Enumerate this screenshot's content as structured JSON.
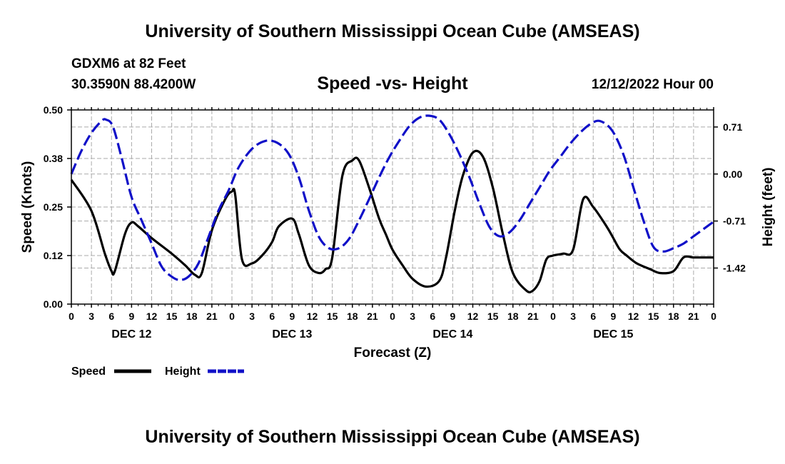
{
  "title": "University of Southern Mississippi Ocean Cube (AMSEAS)",
  "footer_title": "University of Southern Mississippi Ocean Cube (AMSEAS)",
  "station": "GDXM6 at 82 Feet",
  "location": "30.3590N  88.4200W",
  "date_label": "12/12/2022 Hour 00",
  "colors": {
    "speed": "#000000",
    "height": "#1010c8",
    "grid": "#aaaaaa"
  },
  "chart_data": {
    "type": "line",
    "title": "Speed -vs- Height",
    "xlabel": "Forecast (Z)",
    "ylabel": "Speed (Knots)",
    "y2label": "Height (feet)",
    "x_range": [
      0,
      96
    ],
    "ylim": [
      0,
      0.5
    ],
    "y2lim": [
      -1.9645,
      0.9675
    ],
    "x_ticks": [
      0,
      3,
      6,
      9,
      12,
      15,
      18,
      21,
      24,
      27,
      30,
      33,
      36,
      39,
      42,
      45,
      48,
      51,
      54,
      57,
      60,
      63,
      66,
      69,
      72,
      75,
      78,
      81,
      84,
      87,
      90,
      93,
      96
    ],
    "x_tick_labels": [
      "0",
      "3",
      "6",
      "9",
      "12",
      "15",
      "18",
      "21",
      "0",
      "3",
      "6",
      "9",
      "12",
      "15",
      "18",
      "21",
      "0",
      "3",
      "6",
      "9",
      "12",
      "15",
      "18",
      "21",
      "0",
      "3",
      "6",
      "9",
      "12",
      "15",
      "18",
      "21",
      "0"
    ],
    "y_ticks": [
      0.0,
      0.125,
      0.25,
      0.375,
      0.5
    ],
    "y_tick_labels": [
      "0.00",
      "0.12",
      "0.25",
      "0.38",
      "0.50"
    ],
    "y2_ticks": [
      0.71,
      0.0,
      -0.71,
      -1.42
    ],
    "y2_tick_labels": [
      "0.71",
      "0.00",
      "-0.71",
      "-1.42"
    ],
    "day_labels": [
      {
        "x": 9,
        "label": "DEC 12"
      },
      {
        "x": 33,
        "label": "DEC 13"
      },
      {
        "x": 57,
        "label": "DEC 14"
      },
      {
        "x": 81,
        "label": "DEC 15"
      }
    ],
    "grid": true,
    "legend_position": "bottom-left",
    "series": [
      {
        "name": "Speed",
        "axis": "left",
        "style": "solid",
        "x": [
          0,
          3,
          5,
          6,
          6.5,
          8,
          9,
          10,
          12,
          15,
          17,
          18.5,
          19.5,
          21,
          23,
          24,
          24.5,
          25.5,
          27,
          28.5,
          30,
          31,
          33,
          34,
          35.5,
          37,
          38,
          39,
          40.5,
          42,
          43,
          44.5,
          46,
          47,
          48,
          49.5,
          51,
          53,
          55,
          56,
          57.3,
          58.5,
          60,
          61.5,
          63,
          64.5,
          66,
          68,
          69,
          70,
          71,
          72,
          73.5,
          75,
          76.5,
          78,
          80,
          81,
          82,
          83,
          84.5,
          86.5,
          88,
          90,
          91.5,
          93,
          94.5,
          96
        ],
        "values": [
          0.32,
          0.24,
          0.13,
          0.085,
          0.085,
          0.18,
          0.21,
          0.2,
          0.17,
          0.13,
          0.1,
          0.075,
          0.08,
          0.19,
          0.27,
          0.29,
          0.28,
          0.115,
          0.105,
          0.125,
          0.16,
          0.2,
          0.22,
          0.18,
          0.1,
          0.08,
          0.09,
          0.12,
          0.33,
          0.37,
          0.37,
          0.3,
          0.22,
          0.18,
          0.14,
          0.1,
          0.065,
          0.045,
          0.06,
          0.12,
          0.24,
          0.33,
          0.39,
          0.38,
          0.3,
          0.18,
          0.08,
          0.035,
          0.035,
          0.06,
          0.115,
          0.125,
          0.13,
          0.14,
          0.27,
          0.25,
          0.2,
          0.17,
          0.14,
          0.125,
          0.105,
          0.09,
          0.08,
          0.085,
          0.12,
          0.12,
          0.12,
          0.12
        ]
      },
      {
        "name": "Height",
        "axis": "right",
        "style": "dashed",
        "x": [
          0,
          1.5,
          3,
          4.5,
          5.2,
          6.2,
          7.5,
          9,
          10.5,
          12,
          13.5,
          15,
          16.2,
          17.5,
          19,
          20.5,
          22,
          23.5,
          25,
          27,
          29,
          30.8,
          32.5,
          34,
          35.5,
          37,
          38.5,
          40,
          41.5,
          43,
          44.5,
          46,
          47.5,
          49,
          50.5,
          52,
          53.5,
          55,
          56.5,
          58,
          59.5,
          61,
          62.5,
          64,
          65.5,
          67,
          68.5,
          70,
          71.5,
          73,
          74.5,
          76,
          77.5,
          79,
          80.8,
          82.5,
          84,
          85.5,
          87,
          88.5,
          90,
          91.5,
          93,
          94.5,
          96
        ],
        "values": [
          0.0,
          0.35,
          0.62,
          0.8,
          0.82,
          0.72,
          0.25,
          -0.35,
          -0.7,
          -1.05,
          -1.4,
          -1.55,
          -1.6,
          -1.55,
          -1.35,
          -0.95,
          -0.55,
          -0.25,
          0.1,
          0.38,
          0.5,
          0.47,
          0.3,
          -0.05,
          -0.55,
          -0.95,
          -1.12,
          -1.12,
          -0.98,
          -0.7,
          -0.38,
          -0.05,
          0.25,
          0.5,
          0.72,
          0.85,
          0.88,
          0.82,
          0.6,
          0.3,
          -0.05,
          -0.45,
          -0.8,
          -0.94,
          -0.88,
          -0.7,
          -0.45,
          -0.2,
          0.05,
          0.25,
          0.45,
          0.62,
          0.75,
          0.8,
          0.66,
          0.3,
          -0.2,
          -0.7,
          -1.1,
          -1.17,
          -1.12,
          -1.05,
          -0.94,
          -0.83,
          -0.72
        ]
      }
    ]
  }
}
